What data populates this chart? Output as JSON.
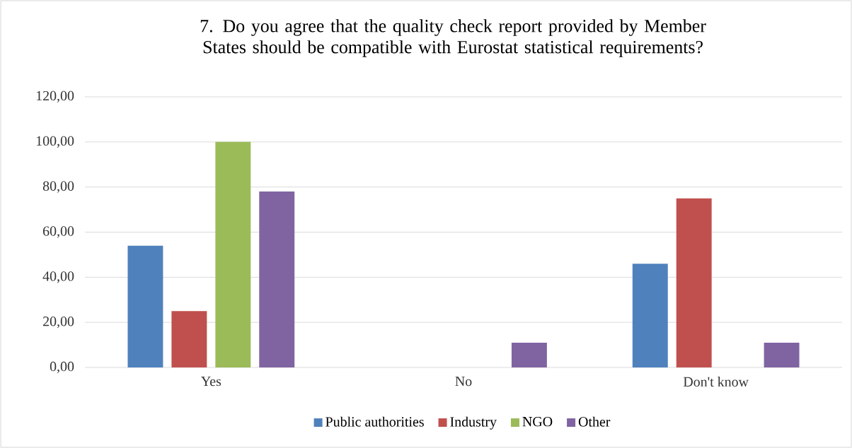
{
  "chart_data": {
    "type": "bar",
    "title": "7. Do you agree that the quality check report provided by Member States should be compatible with Eurostat statistical requirements?",
    "categories": [
      "Yes",
      "No",
      "Don't know"
    ],
    "series": [
      {
        "name": "Public authorities",
        "color": "#4f81bd",
        "values": [
          54,
          0,
          46
        ]
      },
      {
        "name": "Industry",
        "color": "#c0504d",
        "values": [
          25,
          0,
          75
        ]
      },
      {
        "name": "NGO",
        "color": "#9bbb59",
        "values": [
          100,
          0,
          0
        ]
      },
      {
        "name": "Other",
        "color": "#8064a2",
        "values": [
          78,
          11,
          11
        ]
      }
    ],
    "ylim": [
      0,
      120
    ],
    "yticks": [
      {
        "value": 0,
        "label": "0,00"
      },
      {
        "value": 20,
        "label": "20,00"
      },
      {
        "value": 40,
        "label": "40,00"
      },
      {
        "value": 60,
        "label": "60,00"
      },
      {
        "value": 80,
        "label": "80,00"
      },
      {
        "value": 100,
        "label": "100,00"
      },
      {
        "value": 120,
        "label": "120,00"
      }
    ],
    "grid": "y",
    "legend": "bottom"
  }
}
